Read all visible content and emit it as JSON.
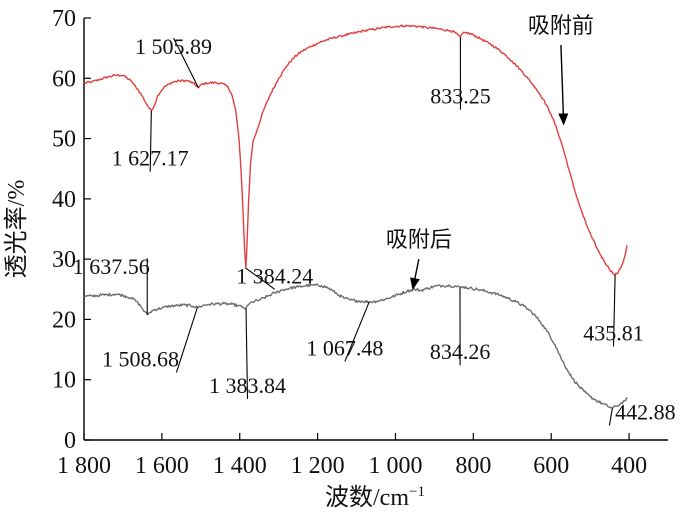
{
  "chart_data": {
    "type": "line",
    "xlabel": "波数/cm",
    "xlabel_sup": "−1",
    "ylabel": "透光率/%",
    "xlim": [
      1800,
      300
    ],
    "ylim": [
      0,
      70
    ],
    "x_reversed": true,
    "grid": false,
    "x_ticks": [
      {
        "value": 1800,
        "label": "1 800"
      },
      {
        "value": 1600,
        "label": "1 600"
      },
      {
        "value": 1400,
        "label": "1 400"
      },
      {
        "value": 1200,
        "label": "1 200"
      },
      {
        "value": 1000,
        "label": "1 000"
      },
      {
        "value": 800,
        "label": "800"
      },
      {
        "value": 600,
        "label": "600"
      },
      {
        "value": 400,
        "label": "400"
      }
    ],
    "y_ticks": [
      {
        "value": 0,
        "label": "0"
      },
      {
        "value": 10,
        "label": "10"
      },
      {
        "value": 20,
        "label": "20"
      },
      {
        "value": 30,
        "label": "30"
      },
      {
        "value": 40,
        "label": "40"
      },
      {
        "value": 50,
        "label": "50"
      },
      {
        "value": 60,
        "label": "60"
      },
      {
        "value": 70,
        "label": "70"
      }
    ],
    "series": [
      {
        "name": "吸附前",
        "color": "#e04040",
        "noise": 0.35,
        "points": [
          [
            1800,
            59.2
          ],
          [
            1780,
            59.4
          ],
          [
            1760,
            59.8
          ],
          [
            1740,
            60.2
          ],
          [
            1720,
            60.5
          ],
          [
            1700,
            60.5
          ],
          [
            1680,
            59.6
          ],
          [
            1660,
            58.0
          ],
          [
            1650,
            57.0
          ],
          [
            1640,
            55.8
          ],
          [
            1632,
            55.0
          ],
          [
            1627,
            54.6
          ],
          [
            1620,
            55.4
          ],
          [
            1610,
            57.2
          ],
          [
            1595,
            58.5
          ],
          [
            1575,
            59.3
          ],
          [
            1555,
            59.6
          ],
          [
            1535,
            59.6
          ],
          [
            1520,
            59.2
          ],
          [
            1510,
            58.7
          ],
          [
            1506,
            58.4
          ],
          [
            1500,
            58.9
          ],
          [
            1485,
            59.2
          ],
          [
            1465,
            59.3
          ],
          [
            1445,
            59.1
          ],
          [
            1430,
            58.6
          ],
          [
            1420,
            57.2
          ],
          [
            1410,
            54.5
          ],
          [
            1402,
            50.0
          ],
          [
            1396,
            44.0
          ],
          [
            1391,
            37.0
          ],
          [
            1387,
            31.0
          ],
          [
            1384.24,
            28.5
          ],
          [
            1381,
            33.0
          ],
          [
            1377,
            40.0
          ],
          [
            1372,
            46.0
          ],
          [
            1366,
            49.5
          ],
          [
            1355,
            51.5
          ],
          [
            1340,
            54.5
          ],
          [
            1320,
            57.5
          ],
          [
            1300,
            60.0
          ],
          [
            1280,
            62.0
          ],
          [
            1260,
            63.5
          ],
          [
            1240,
            64.5
          ],
          [
            1220,
            65.2
          ],
          [
            1200,
            65.8
          ],
          [
            1180,
            66.3
          ],
          [
            1160,
            66.7
          ],
          [
            1140,
            67.0
          ],
          [
            1120,
            67.3
          ],
          [
            1100,
            67.6
          ],
          [
            1080,
            67.9
          ],
          [
            1060,
            68.1
          ],
          [
            1040,
            68.3
          ],
          [
            1020,
            68.5
          ],
          [
            1000,
            68.6
          ],
          [
            980,
            68.7
          ],
          [
            960,
            68.7
          ],
          [
            940,
            68.6
          ],
          [
            920,
            68.4
          ],
          [
            900,
            68.3
          ],
          [
            880,
            68.1
          ],
          [
            860,
            67.9
          ],
          [
            850,
            67.7
          ],
          [
            840,
            67.2
          ],
          [
            833.25,
            66.8
          ],
          [
            828,
            67.4
          ],
          [
            820,
            67.6
          ],
          [
            800,
            67.2
          ],
          [
            780,
            66.5
          ],
          [
            760,
            65.8
          ],
          [
            740,
            65.0
          ],
          [
            720,
            64.0
          ],
          [
            700,
            62.8
          ],
          [
            680,
            61.5
          ],
          [
            660,
            60.0
          ],
          [
            640,
            58.4
          ],
          [
            620,
            56.5
          ],
          [
            600,
            54.0
          ],
          [
            585,
            51.5
          ],
          [
            570,
            48.5
          ],
          [
            555,
            45.0
          ],
          [
            540,
            41.5
          ],
          [
            525,
            38.5
          ],
          [
            510,
            35.8
          ],
          [
            495,
            33.5
          ],
          [
            480,
            31.5
          ],
          [
            465,
            29.8
          ],
          [
            452,
            28.5
          ],
          [
            442,
            27.7
          ],
          [
            435.81,
            27.4
          ],
          [
            428,
            27.8
          ],
          [
            420,
            28.8
          ],
          [
            412,
            30.2
          ],
          [
            405,
            32.3
          ]
        ]
      },
      {
        "name": "吸附后",
        "color": "#6e6e6e",
        "noise": 0.45,
        "points": [
          [
            1800,
            23.8
          ],
          [
            1780,
            23.9
          ],
          [
            1760,
            24.0
          ],
          [
            1740,
            24.1
          ],
          [
            1720,
            24.2
          ],
          [
            1700,
            24.0
          ],
          [
            1680,
            23.6
          ],
          [
            1665,
            23.0
          ],
          [
            1652,
            22.0
          ],
          [
            1645,
            21.3
          ],
          [
            1637.56,
            20.8
          ],
          [
            1630,
            21.2
          ],
          [
            1620,
            21.6
          ],
          [
            1600,
            21.9
          ],
          [
            1580,
            22.2
          ],
          [
            1560,
            22.3
          ],
          [
            1540,
            22.4
          ],
          [
            1520,
            22.2
          ],
          [
            1508.68,
            22.0
          ],
          [
            1495,
            22.3
          ],
          [
            1480,
            22.5
          ],
          [
            1460,
            22.6
          ],
          [
            1440,
            22.6
          ],
          [
            1420,
            22.5
          ],
          [
            1405,
            22.3
          ],
          [
            1395,
            22.1
          ],
          [
            1388,
            21.9
          ],
          [
            1383.84,
            21.8
          ],
          [
            1378,
            22.4
          ],
          [
            1368,
            22.9
          ],
          [
            1350,
            23.2
          ],
          [
            1330,
            23.8
          ],
          [
            1310,
            24.4
          ],
          [
            1290,
            24.9
          ],
          [
            1270,
            25.2
          ],
          [
            1250,
            25.4
          ],
          [
            1230,
            25.6
          ],
          [
            1210,
            25.7
          ],
          [
            1190,
            25.6
          ],
          [
            1175,
            25.3
          ],
          [
            1160,
            24.7
          ],
          [
            1145,
            24.0
          ],
          [
            1130,
            23.5
          ],
          [
            1115,
            23.2
          ],
          [
            1100,
            23.1
          ],
          [
            1085,
            23.0
          ],
          [
            1067.48,
            22.9
          ],
          [
            1050,
            23.0
          ],
          [
            1030,
            23.3
          ],
          [
            1010,
            23.7
          ],
          [
            990,
            24.2
          ],
          [
            970,
            24.7
          ],
          [
            950,
            25.0
          ],
          [
            935,
            24.8
          ],
          [
            920,
            25.1
          ],
          [
            900,
            25.5
          ],
          [
            880,
            25.6
          ],
          [
            860,
            25.6
          ],
          [
            845,
            25.5
          ],
          [
            834.26,
            25.3
          ],
          [
            825,
            25.4
          ],
          [
            810,
            25.2
          ],
          [
            790,
            25.0
          ],
          [
            770,
            24.7
          ],
          [
            750,
            24.4
          ],
          [
            730,
            24.0
          ],
          [
            710,
            23.5
          ],
          [
            690,
            22.9
          ],
          [
            670,
            22.2
          ],
          [
            650,
            21.2
          ],
          [
            630,
            19.8
          ],
          [
            610,
            18.0
          ],
          [
            590,
            15.8
          ],
          [
            575,
            13.6
          ],
          [
            560,
            11.8
          ],
          [
            545,
            10.2
          ],
          [
            530,
            9.0
          ],
          [
            515,
            8.0
          ],
          [
            500,
            7.2
          ],
          [
            485,
            6.6
          ],
          [
            470,
            6.1
          ],
          [
            455,
            5.6
          ],
          [
            442.88,
            5.3
          ],
          [
            432,
            5.6
          ],
          [
            422,
            6.0
          ],
          [
            412,
            6.5
          ],
          [
            404,
            6.9
          ]
        ]
      }
    ],
    "annotations": [
      {
        "text": "吸附前",
        "kind": "series-label",
        "target": [
          568,
          52.5
        ],
        "text_x": 575,
        "text_y": 67.5
      },
      {
        "text": "吸附后",
        "kind": "series-label",
        "target": [
          955,
          25.2
        ],
        "text_x": 940,
        "text_y": 32.0
      },
      {
        "text": "1 505.89",
        "series": 0,
        "at": [
          1506,
          58.4
        ],
        "text_x": 1570,
        "text_y": 64.0
      },
      {
        "text": "1 627.17",
        "series": 0,
        "at": [
          1627,
          54.6
        ],
        "text_x": 1630,
        "text_y": 45.5
      },
      {
        "text": "833.25",
        "series": 0,
        "at": [
          833.25,
          66.8
        ],
        "text_x": 833,
        "text_y": 55.8
      },
      {
        "text": "435.81",
        "series": 0,
        "at": [
          435.81,
          27.4
        ],
        "text_x": 440,
        "text_y": 16.5
      },
      {
        "text": "1 637.56",
        "series": 1,
        "at": [
          1637.56,
          20.8
        ],
        "text_x": 1730,
        "text_y": 27.5
      },
      {
        "text": "1 384.24",
        "series": 0,
        "at": [
          1384.24,
          28.5
        ],
        "text_x": 1310,
        "text_y": 26.0
      },
      {
        "text": "1 508.68",
        "series": 1,
        "at": [
          1508.68,
          22.0
        ],
        "text_x": 1655,
        "text_y": 12.2
      },
      {
        "text": "1 383.84",
        "series": 1,
        "at": [
          1383.84,
          21.8
        ],
        "text_x": 1380,
        "text_y": 7.8
      },
      {
        "text": "1 067.48",
        "series": 1,
        "at": [
          1067.48,
          22.9
        ],
        "text_x": 1130,
        "text_y": 14.0
      },
      {
        "text": "834.26",
        "series": 1,
        "at": [
          834.26,
          25.3
        ],
        "text_x": 834,
        "text_y": 13.4
      },
      {
        "text": "442.88",
        "series": 1,
        "at": [
          442.88,
          5.3
        ],
        "text_x": 358,
        "text_y": 3.4
      }
    ]
  }
}
